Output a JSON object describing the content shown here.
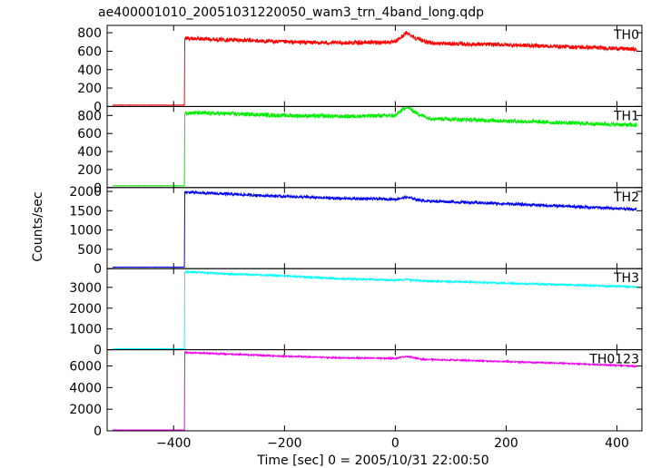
{
  "chart_data": {
    "type": "line",
    "title": "ae400001010_20051031220050_wam3_trn_4band_long.qdp",
    "xlabel": "Time [sec] 0 = 2005/10/31 22:00:50",
    "ylabel": "Counts/sec",
    "xlim": [
      -520,
      445
    ],
    "x_ticks": [
      -400,
      -200,
      0,
      200,
      400
    ],
    "x_tick_labels": [
      "−400",
      "−200",
      "0",
      "200",
      "400"
    ],
    "data_range": [
      -510,
      435
    ],
    "onset_time": -380,
    "panels": [
      {
        "name": "TH0",
        "color": "#ff0000",
        "ylim": [
          0,
          880
        ],
        "y_ticks": [
          0,
          200,
          400,
          600,
          800
        ],
        "y_tick_labels": [
          "0",
          "200",
          "400",
          "600",
          "800"
        ],
        "pre_level": 15,
        "noise": 22,
        "post_curve": [
          [
            -380,
            740
          ],
          [
            -300,
            725
          ],
          [
            -200,
            700
          ],
          [
            -100,
            690
          ],
          [
            0,
            700
          ],
          [
            20,
            800
          ],
          [
            35,
            750
          ],
          [
            60,
            690
          ],
          [
            100,
            680
          ],
          [
            200,
            670
          ],
          [
            300,
            650
          ],
          [
            400,
            630
          ],
          [
            435,
            620
          ]
        ]
      },
      {
        "name": "TH1",
        "color": "#00ee00",
        "ylim": [
          0,
          900
        ],
        "y_ticks": [
          0,
          200,
          400,
          600,
          800
        ],
        "y_tick_labels": [
          "0",
          "200",
          "400",
          "600",
          "800"
        ],
        "pre_level": 20,
        "noise": 22,
        "post_curve": [
          [
            -380,
            830
          ],
          [
            -300,
            820
          ],
          [
            -200,
            800
          ],
          [
            -100,
            790
          ],
          [
            0,
            800
          ],
          [
            20,
            900
          ],
          [
            40,
            820
          ],
          [
            60,
            770
          ],
          [
            100,
            760
          ],
          [
            200,
            740
          ],
          [
            300,
            720
          ],
          [
            400,
            700
          ],
          [
            435,
            690
          ]
        ]
      },
      {
        "name": "TH2",
        "color": "#0000ee",
        "ylim": [
          0,
          2100
        ],
        "y_ticks": [
          0,
          500,
          1000,
          1500,
          2000
        ],
        "y_tick_labels": [
          "0",
          "500",
          "1000",
          "1500",
          "2000"
        ],
        "pre_level": 40,
        "noise": 35,
        "post_curve": [
          [
            -380,
            1980
          ],
          [
            -300,
            1930
          ],
          [
            -200,
            1870
          ],
          [
            -100,
            1820
          ],
          [
            0,
            1800
          ],
          [
            20,
            1850
          ],
          [
            50,
            1760
          ],
          [
            100,
            1730
          ],
          [
            200,
            1680
          ],
          [
            300,
            1620
          ],
          [
            400,
            1560
          ],
          [
            435,
            1540
          ]
        ]
      },
      {
        "name": "TH3",
        "color": "#00ffff",
        "ylim": [
          0,
          3900
        ],
        "y_ticks": [
          0,
          1000,
          2000,
          3000
        ],
        "y_tick_labels": [
          "0",
          "1000",
          "2000",
          "3000"
        ],
        "pre_level": 50,
        "noise": 45,
        "post_curve": [
          [
            -380,
            3750
          ],
          [
            -300,
            3650
          ],
          [
            -200,
            3550
          ],
          [
            -100,
            3420
          ],
          [
            0,
            3350
          ],
          [
            20,
            3380
          ],
          [
            50,
            3300
          ],
          [
            100,
            3280
          ],
          [
            200,
            3200
          ],
          [
            300,
            3130
          ],
          [
            400,
            3050
          ],
          [
            435,
            3020
          ]
        ]
      },
      {
        "name": "TH0123",
        "color": "#ee00ee",
        "ylim": [
          0,
          7500
        ],
        "y_ticks": [
          0,
          2000,
          4000,
          6000
        ],
        "y_tick_labels": [
          "0",
          "2000",
          "4000",
          "6000"
        ],
        "pre_level": 80,
        "noise": 65,
        "post_curve": [
          [
            -380,
            7250
          ],
          [
            -300,
            7100
          ],
          [
            -200,
            6900
          ],
          [
            -100,
            6750
          ],
          [
            0,
            6700
          ],
          [
            20,
            6900
          ],
          [
            50,
            6600
          ],
          [
            100,
            6550
          ],
          [
            200,
            6400
          ],
          [
            300,
            6250
          ],
          [
            400,
            6050
          ],
          [
            435,
            5980
          ]
        ]
      }
    ]
  }
}
